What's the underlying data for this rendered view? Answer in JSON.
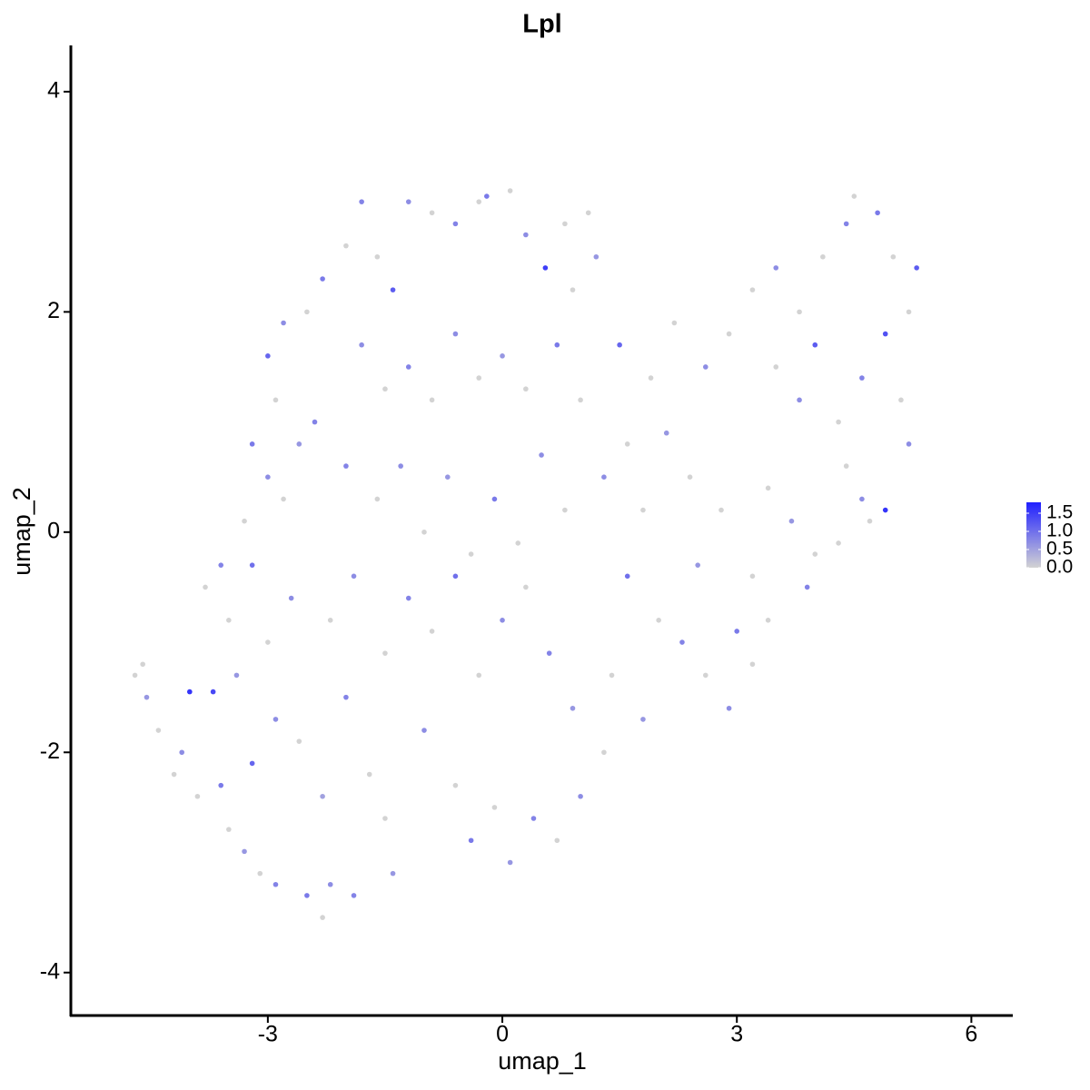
{
  "chart_data": {
    "type": "scatter",
    "title": "Lpl",
    "x_label": "umap_1",
    "y_label": "umap_2",
    "xlim": [
      -5.52,
      6.53
    ],
    "ylim": [
      -4.39,
      4.42
    ],
    "xticks": [
      -3,
      0,
      3,
      6
    ],
    "yticks": [
      -4,
      -2,
      0,
      2,
      4
    ],
    "color_low": "#d3d3d3",
    "color_high": "#2020ff",
    "colorlim": [
      0,
      1.8
    ],
    "colorticks": [
      {
        "value": 0,
        "label": "0.0"
      },
      {
        "value": 0.5,
        "label": "0.5"
      },
      {
        "value": 1,
        "label": "1.0"
      },
      {
        "value": 1.5,
        "label": "1.5"
      }
    ],
    "x": [
      -4.7,
      -4.6,
      -4.55,
      -4.4,
      -4.0,
      -3.7,
      -4.1,
      -4.2,
      -3.9,
      -3.6,
      -3.5,
      -3.3,
      -3.1,
      -2.9,
      -2.5,
      -2.3,
      -2.2,
      -1.9,
      -1.4,
      -1.5,
      -3.2,
      -2.9,
      -2.6,
      -2.3,
      -2.0,
      -1.7,
      -3.4,
      -3.0,
      -2.7,
      -3.2,
      -3.5,
      -3.8,
      -3.6,
      -3.3,
      -3.0,
      -2.8,
      -2.6,
      -3.2,
      -2.9,
      -2.4,
      -3.0,
      -2.8,
      -2.5,
      -2.3,
      -2.0,
      -1.8,
      -1.6,
      -1.4,
      -1.2,
      -0.9,
      -0.6,
      -0.3,
      -0.2,
      0.1,
      0.3,
      0.55,
      0.8,
      1.1,
      1.2,
      0.9,
      -1.8,
      -1.5,
      -1.2,
      -0.9,
      -0.6,
      -0.3,
      0.0,
      0.3,
      0.7,
      1.0,
      -2.0,
      -1.6,
      -1.3,
      -1.0,
      -0.7,
      -0.4,
      -0.1,
      0.2,
      0.5,
      0.8,
      -2.2,
      -1.9,
      -1.5,
      -1.2,
      -0.9,
      -0.6,
      -0.3,
      0.0,
      0.3,
      0.6,
      -1.0,
      -0.6,
      -0.4,
      -0.1,
      0.1,
      0.4,
      0.7,
      1.0,
      1.3,
      0.9,
      1.3,
      1.6,
      1.8,
      2.1,
      2.4,
      1.5,
      1.9,
      2.2,
      2.6,
      2.9,
      1.6,
      2.0,
      2.3,
      2.6,
      2.9,
      3.2,
      3.4,
      3.0,
      1.4,
      1.8,
      3.2,
      3.5,
      3.8,
      4.1,
      4.4,
      4.5,
      4.8,
      5.0,
      5.3,
      5.2,
      3.5,
      3.8,
      4.0,
      4.3,
      4.6,
      4.9,
      5.1,
      5.2,
      4.9,
      4.4,
      3.4,
      3.7,
      4.0,
      4.3,
      4.6,
      3.2,
      2.8,
      2.5,
      3.9,
      4.7
    ],
    "y": [
      -1.3,
      -1.2,
      -1.5,
      -1.8,
      -1.45,
      -1.45,
      -2.0,
      -2.2,
      -2.4,
      -2.3,
      -2.7,
      -2.9,
      -3.1,
      -3.2,
      -3.3,
      -3.5,
      -3.2,
      -3.3,
      -3.1,
      -2.6,
      -2.1,
      -1.7,
      -1.9,
      -2.4,
      -1.5,
      -2.2,
      -1.3,
      -1.0,
      -0.6,
      -0.3,
      -0.8,
      -0.5,
      -0.3,
      0.1,
      0.5,
      0.3,
      0.8,
      0.8,
      1.2,
      1.0,
      1.6,
      1.9,
      2.0,
      2.3,
      2.6,
      3.0,
      2.5,
      2.2,
      3.0,
      2.9,
      2.8,
      3.0,
      3.05,
      3.1,
      2.7,
      2.4,
      2.8,
      2.9,
      2.5,
      2.2,
      1.7,
      1.3,
      1.5,
      1.2,
      1.8,
      1.4,
      1.6,
      1.3,
      1.7,
      1.2,
      0.6,
      0.3,
      0.6,
      0.0,
      0.5,
      -0.2,
      0.3,
      -0.1,
      0.7,
      0.2,
      -0.8,
      -0.4,
      -1.1,
      -0.6,
      -0.9,
      -0.4,
      -1.3,
      -0.8,
      -0.5,
      -1.1,
      -1.8,
      -2.3,
      -2.8,
      -2.5,
      -3.0,
      -2.6,
      -2.8,
      -2.4,
      -2.0,
      -1.6,
      0.5,
      0.8,
      0.2,
      0.9,
      0.5,
      1.7,
      1.4,
      1.9,
      1.5,
      1.8,
      -0.4,
      -0.8,
      -1.0,
      -1.3,
      -1.6,
      -1.2,
      -0.8,
      -0.9,
      -1.3,
      -1.7,
      2.2,
      2.4,
      2.0,
      2.5,
      2.8,
      3.05,
      2.9,
      2.5,
      2.4,
      2.0,
      1.5,
      1.2,
      1.7,
      1.0,
      1.4,
      1.8,
      1.2,
      0.8,
      0.2,
      0.6,
      0.4,
      0.1,
      -0.2,
      -0.1,
      0.3,
      -0.4,
      0.2,
      -0.3,
      -0.5,
      0.1
    ],
    "values": [
      0,
      0,
      0.6,
      0,
      1.6,
      1.4,
      0.7,
      0,
      0,
      0.9,
      0,
      0.6,
      0,
      0.8,
      0.9,
      0,
      0.7,
      0.8,
      0.6,
      0,
      1.1,
      0.7,
      0,
      0.5,
      0.8,
      0,
      0.6,
      0,
      0.7,
      1.0,
      0,
      0,
      0.8,
      0,
      0.7,
      0,
      0.6,
      0.9,
      0,
      0.8,
      1.1,
      0.7,
      0,
      0.9,
      0,
      0.8,
      0,
      1.2,
      0.7,
      0,
      0.8,
      0,
      0.9,
      0,
      0.7,
      1.5,
      0,
      0,
      0.6,
      0,
      0.7,
      0,
      0.8,
      0,
      0.7,
      0,
      0.6,
      0,
      0.9,
      0,
      0.8,
      0,
      0.7,
      0,
      0.6,
      0,
      0.9,
      0,
      0.7,
      0,
      0,
      0.7,
      0,
      0.8,
      0,
      1.0,
      0,
      0.7,
      0,
      0.8,
      0.7,
      0,
      0.9,
      0,
      0.6,
      0.8,
      0,
      0.7,
      0,
      0.6,
      0.7,
      0,
      0,
      0.6,
      0,
      1.1,
      0,
      0,
      0.7,
      0,
      1.0,
      0,
      0.8,
      0,
      0.7,
      0,
      0,
      0.9,
      0,
      0.6,
      0,
      0.7,
      0,
      0,
      0.8,
      0,
      0.9,
      0,
      1.2,
      0,
      0,
      0.7,
      1.2,
      0,
      0.8,
      1.3,
      0,
      0.7,
      1.6,
      0,
      0,
      0.6,
      0,
      0,
      0.7,
      0,
      0,
      0.6,
      0.8,
      0
    ]
  }
}
